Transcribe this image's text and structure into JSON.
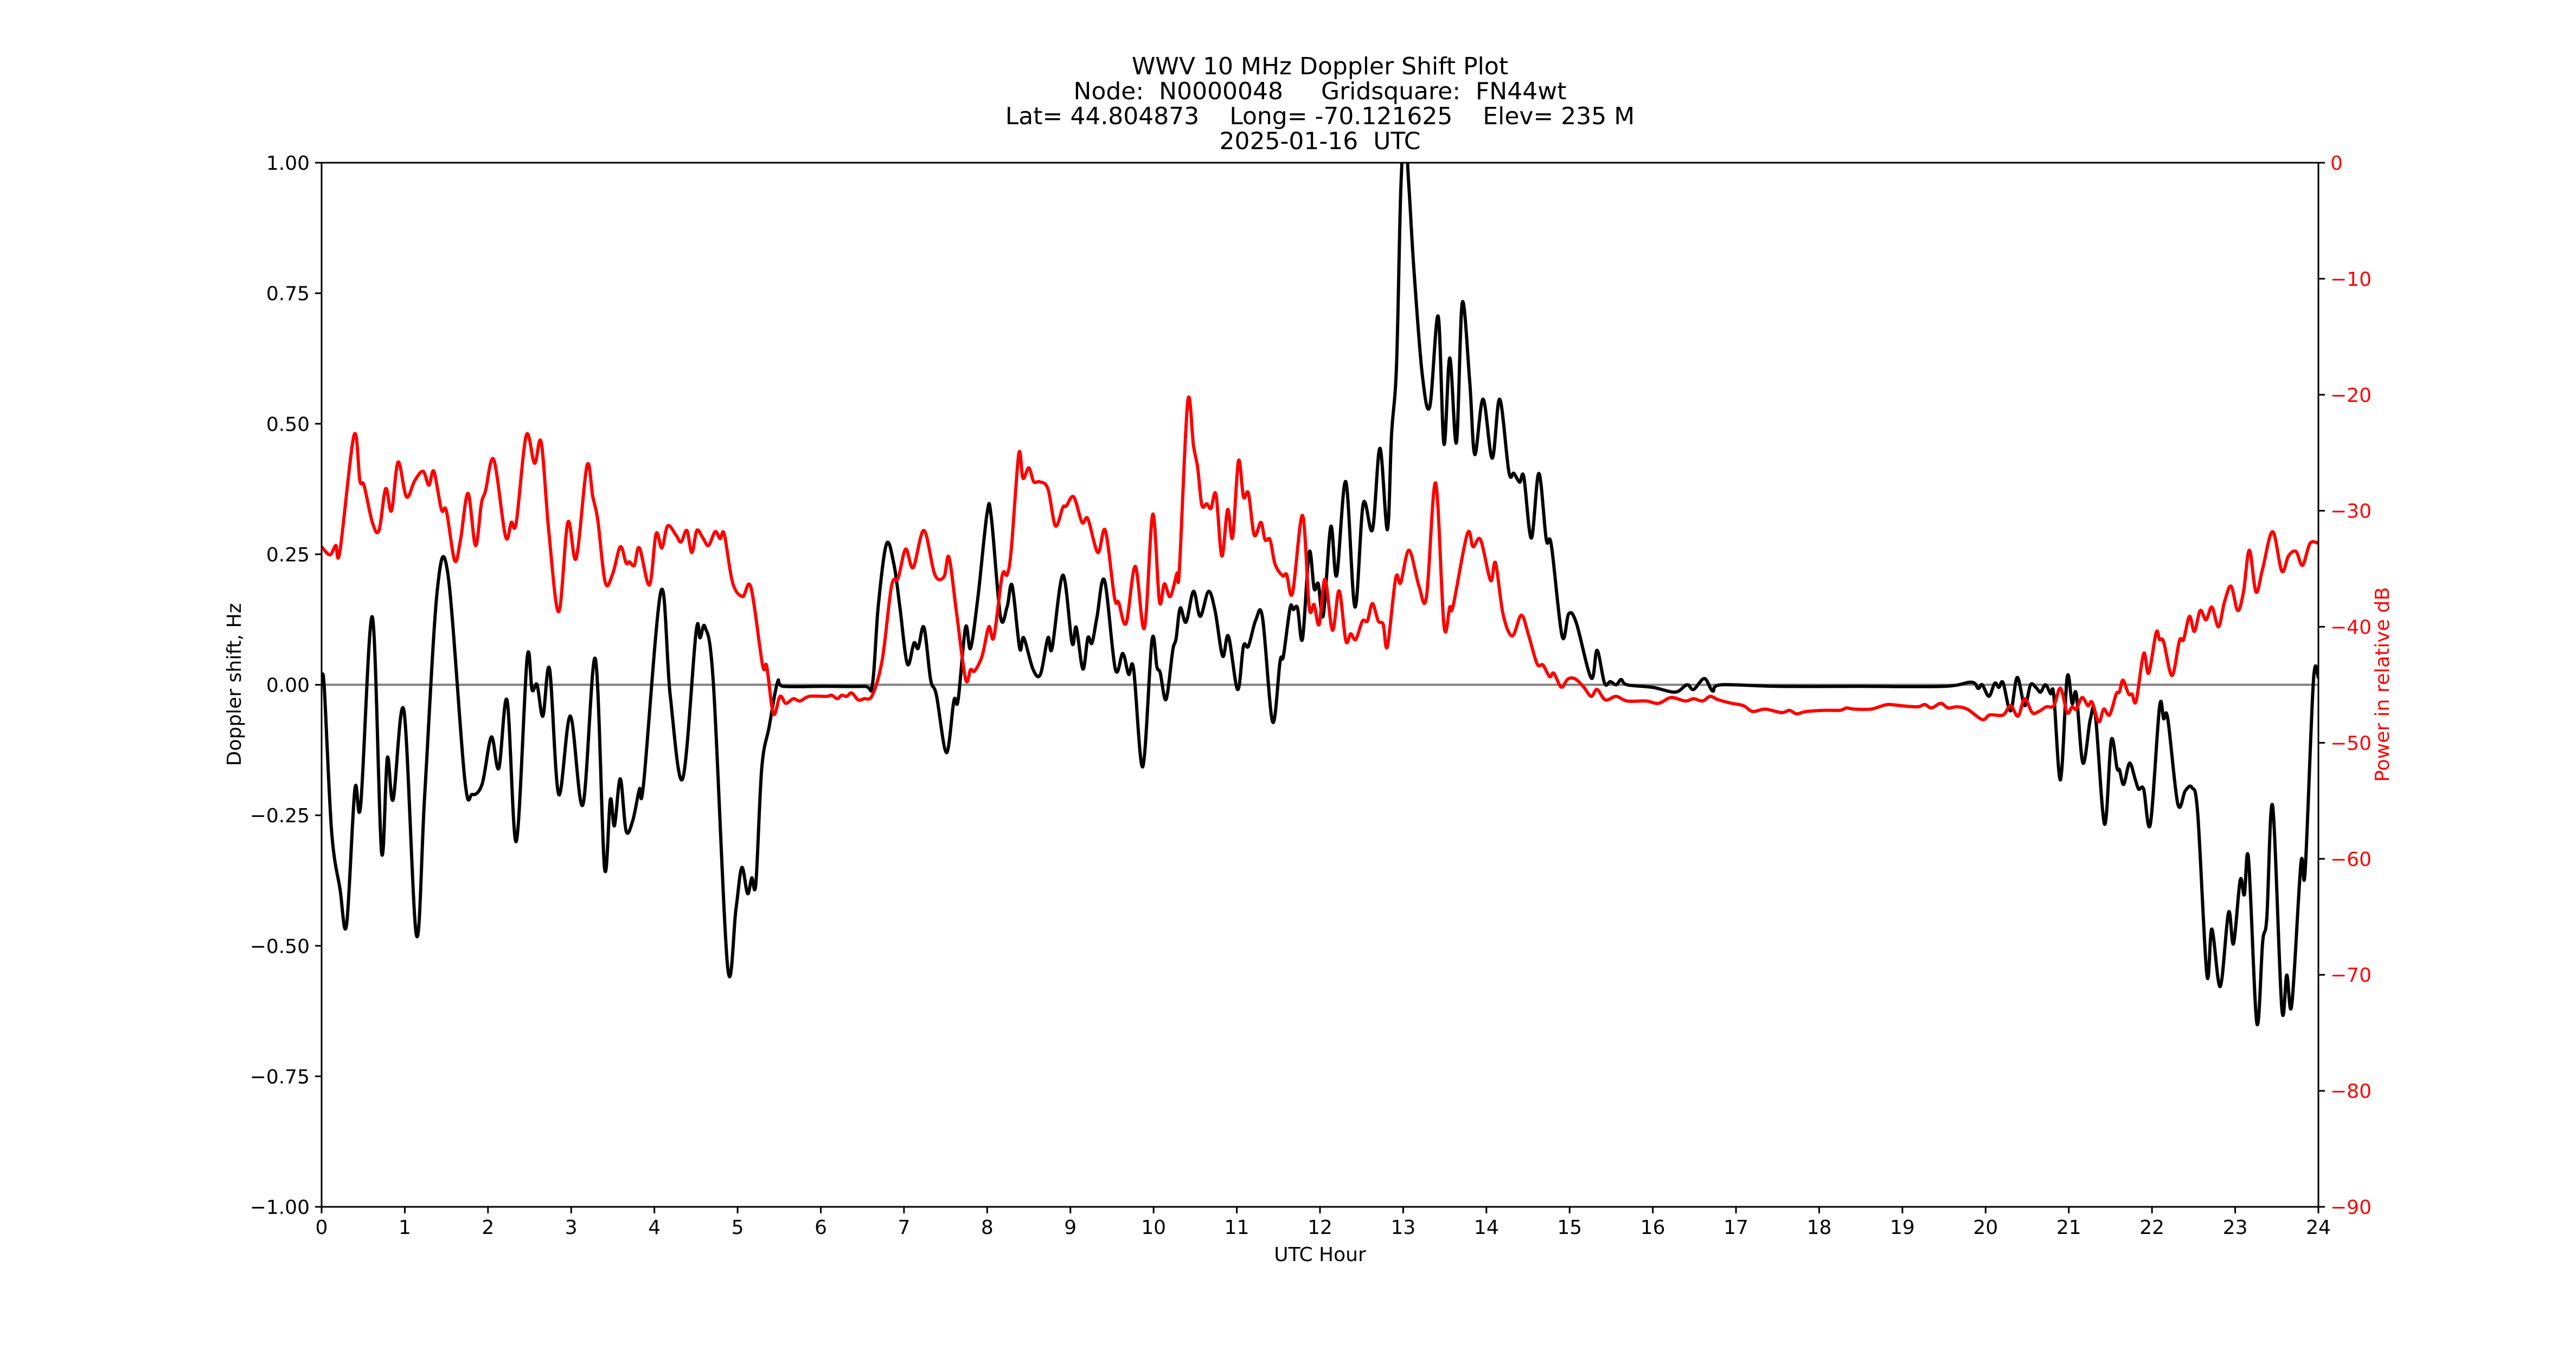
{
  "figure": {
    "title_lines": [
      "WWV 10 MHz Doppler Shift Plot",
      "Node:  N0000048     Gridsquare:  FN44wt",
      "Lat= 44.804873    Long= -70.121625    Elev= 235 M",
      "2025-01-16  UTC"
    ],
    "colors": {
      "doppler": "#000000",
      "power": "#ff0000",
      "zero_line": "#808080",
      "axes": "#000000"
    }
  },
  "chart_data": {
    "type": "line",
    "title": "WWV 10 MHz Doppler Shift Plot\nNode:  N0000048     Gridsquare:  FN44wt\nLat= 44.804873    Long= -70.121625    Elev= 235 M\n2025-01-16  UTC",
    "xlabel": "UTC Hour",
    "ylabel": "Doppler shift, Hz",
    "ylabel_right": "Power in relative dB",
    "xlim": [
      0,
      24
    ],
    "ylim": [
      -1.0,
      1.0
    ],
    "ylim_right": [
      -90,
      0
    ],
    "grid": false,
    "legend": null,
    "x_ticks": [
      "0",
      "1",
      "2",
      "3",
      "4",
      "5",
      "6",
      "7",
      "8",
      "9",
      "10",
      "11",
      "12",
      "13",
      "14",
      "15",
      "16",
      "17",
      "18",
      "19",
      "20",
      "21",
      "22",
      "23",
      "24"
    ],
    "y_ticks": [
      "1.00",
      "0.75",
      "0.50",
      "0.25",
      "0.00",
      "−0.25",
      "−0.50",
      "−0.75",
      "−1.00"
    ],
    "y_tick_values": [
      1.0,
      0.75,
      0.5,
      0.25,
      0.0,
      -0.25,
      -0.5,
      -0.75,
      -1.0
    ],
    "y_right_ticks": [
      "0",
      "−10",
      "−20",
      "−30",
      "−40",
      "−50",
      "−60",
      "−70",
      "−80",
      "−90"
    ],
    "y_right_tick_values": [
      0,
      -10,
      -20,
      -30,
      -40,
      -50,
      -60,
      -70,
      -80,
      -90
    ],
    "reference_line": {
      "y": 0.0,
      "color": "#808080"
    },
    "series": [
      {
        "name": "Doppler shift (Hz)",
        "axis": "left",
        "color": "#000000",
        "x": [
          0.0,
          0.03,
          0.12,
          0.22,
          0.3,
          0.4,
          0.47,
          0.61,
          0.72,
          0.79,
          0.86,
          0.99,
          1.14,
          1.24,
          1.39,
          1.52,
          1.72,
          1.81,
          1.93,
          2.04,
          2.13,
          2.23,
          2.34,
          2.47,
          2.53,
          2.59,
          2.66,
          2.74,
          2.85,
          2.99,
          3.14,
          3.29,
          3.4,
          3.47,
          3.52,
          3.59,
          3.66,
          3.74,
          3.82,
          3.87,
          4.08,
          4.19,
          4.34,
          4.5,
          4.55,
          4.61,
          4.71,
          4.88,
          4.98,
          5.05,
          5.12,
          5.17,
          5.22,
          5.29,
          5.38,
          5.48,
          5.55,
          6.0,
          6.52,
          6.62,
          6.69,
          6.79,
          6.88,
          6.95,
          7.04,
          7.12,
          7.17,
          7.24,
          7.32,
          7.39,
          7.51,
          7.6,
          7.65,
          7.74,
          7.8,
          7.89,
          8.0,
          8.05,
          8.16,
          8.24,
          8.3,
          8.39,
          8.44,
          8.55,
          8.64,
          8.73,
          8.78,
          8.91,
          9.02,
          9.07,
          9.15,
          9.21,
          9.26,
          9.32,
          9.41,
          9.54,
          9.63,
          9.7,
          9.76,
          9.87,
          9.98,
          10.04,
          10.08,
          10.15,
          10.23,
          10.27,
          10.32,
          10.39,
          10.48,
          10.56,
          10.66,
          10.74,
          10.83,
          10.9,
          11.01,
          11.08,
          11.14,
          11.23,
          11.31,
          11.43,
          11.52,
          11.56,
          11.64,
          11.68,
          11.73,
          11.79,
          11.87,
          11.93,
          11.98,
          12.04,
          12.13,
          12.2,
          12.31,
          12.42,
          12.52,
          12.63,
          12.72,
          12.81,
          12.86,
          12.92,
          12.97,
          13.02,
          13.07,
          13.13,
          13.23,
          13.32,
          13.42,
          13.49,
          13.56,
          13.64,
          13.71,
          13.8,
          13.86,
          13.96,
          14.07,
          14.16,
          14.27,
          14.33,
          14.4,
          14.45,
          14.54,
          14.63,
          14.72,
          14.78,
          14.91,
          14.99,
          15.08,
          15.26,
          15.33,
          15.42,
          15.49,
          15.56,
          15.62,
          15.69,
          16.0,
          16.27,
          16.41,
          16.49,
          16.62,
          16.72,
          16.82,
          17.5,
          18.5,
          19.5,
          19.83,
          19.91,
          19.96,
          20.04,
          20.11,
          20.16,
          20.21,
          20.3,
          20.38,
          20.47,
          20.54,
          20.61,
          20.66,
          20.72,
          20.78,
          20.82,
          20.9,
          20.98,
          21.04,
          21.09,
          21.17,
          21.26,
          21.32,
          21.43,
          21.51,
          21.58,
          21.61,
          21.66,
          21.73,
          21.8,
          21.84,
          21.9,
          21.98,
          22.09,
          22.14,
          22.19,
          22.31,
          22.4,
          22.48,
          22.55,
          22.66,
          22.72,
          22.82,
          22.92,
          22.98,
          23.06,
          23.11,
          23.16,
          23.26,
          23.33,
          23.38,
          23.45,
          23.56,
          23.62,
          23.68,
          23.79,
          23.84,
          23.94,
          24.0
        ],
        "values": [
          0.0,
          0.0,
          -0.28,
          -0.39,
          -0.46,
          -0.2,
          -0.23,
          0.13,
          -0.32,
          -0.14,
          -0.22,
          -0.05,
          -0.48,
          -0.21,
          0.18,
          0.21,
          -0.18,
          -0.21,
          -0.19,
          -0.1,
          -0.16,
          -0.03,
          -0.3,
          0.05,
          -0.01,
          0.0,
          -0.06,
          0.03,
          -0.21,
          -0.06,
          -0.23,
          0.05,
          -0.35,
          -0.22,
          -0.27,
          -0.18,
          -0.28,
          -0.26,
          -0.2,
          -0.19,
          0.18,
          -0.02,
          -0.18,
          0.1,
          0.09,
          0.11,
          0.0,
          -0.54,
          -0.43,
          -0.35,
          -0.4,
          -0.37,
          -0.38,
          -0.16,
          -0.08,
          0.005,
          -0.003,
          -0.003,
          -0.003,
          0.0,
          0.15,
          0.27,
          0.23,
          0.15,
          0.04,
          0.08,
          0.07,
          0.11,
          0.01,
          -0.02,
          -0.13,
          -0.03,
          -0.03,
          0.11,
          0.07,
          0.17,
          0.33,
          0.32,
          0.13,
          0.15,
          0.19,
          0.07,
          0.09,
          0.03,
          0.02,
          0.09,
          0.07,
          0.21,
          0.08,
          0.11,
          0.03,
          0.09,
          0.08,
          0.13,
          0.2,
          0.03,
          0.06,
          0.02,
          0.03,
          -0.157,
          0.085,
          0.034,
          0.023,
          -0.028,
          0.066,
          0.088,
          0.147,
          0.12,
          0.179,
          0.131,
          0.179,
          0.141,
          0.055,
          0.093,
          -0.009,
          0.074,
          0.074,
          0.125,
          0.128,
          -0.071,
          0.045,
          0.055,
          0.147,
          0.144,
          0.147,
          0.088,
          0.254,
          0.184,
          0.193,
          0.133,
          0.303,
          0.209,
          0.389,
          0.149,
          0.347,
          0.297,
          0.453,
          0.297,
          0.479,
          0.612,
          0.943,
          1.06,
          0.95,
          0.792,
          0.593,
          0.533,
          0.706,
          0.461,
          0.626,
          0.464,
          0.732,
          0.579,
          0.441,
          0.547,
          0.434,
          0.547,
          0.408,
          0.405,
          0.388,
          0.398,
          0.281,
          0.405,
          0.278,
          0.268,
          0.093,
          0.136,
          0.119,
          0.013,
          0.066,
          0.003,
          0.006,
          0.0,
          0.01,
          0.0,
          -0.005,
          -0.014,
          0.0,
          -0.009,
          0.012,
          -0.012,
          0.0,
          -0.003,
          -0.003,
          -0.003,
          0.005,
          -0.007,
          0.0,
          -0.022,
          0.003,
          -0.005,
          0.004,
          -0.05,
          0.014,
          -0.04,
          0.0,
          -0.006,
          -0.014,
          0.0,
          -0.017,
          -0.02,
          -0.182,
          0.014,
          -0.036,
          -0.018,
          -0.15,
          -0.065,
          -0.059,
          -0.267,
          -0.106,
          -0.16,
          -0.163,
          -0.191,
          -0.15,
          -0.182,
          -0.2,
          -0.2,
          -0.267,
          -0.043,
          -0.065,
          -0.065,
          -0.228,
          -0.203,
          -0.197,
          -0.247,
          -0.556,
          -0.468,
          -0.578,
          -0.436,
          -0.496,
          -0.374,
          -0.402,
          -0.333,
          -0.648,
          -0.493,
          -0.446,
          -0.232,
          -0.619,
          -0.556,
          -0.613,
          -0.342,
          -0.358,
          0.007,
          0.014
        ]
      },
      {
        "name": "Power (relative dB)",
        "axis": "right",
        "color": "#ff0000",
        "x": [
          0.0,
          0.1,
          0.17,
          0.22,
          0.39,
          0.46,
          0.51,
          0.61,
          0.69,
          0.77,
          0.84,
          0.92,
          1.02,
          1.12,
          1.22,
          1.29,
          1.35,
          1.44,
          1.5,
          1.6,
          1.67,
          1.76,
          1.85,
          1.92,
          1.97,
          2.07,
          2.21,
          2.28,
          2.34,
          2.46,
          2.56,
          2.64,
          2.73,
          2.85,
          2.96,
          3.06,
          3.19,
          3.26,
          3.32,
          3.41,
          3.5,
          3.59,
          3.66,
          3.7,
          3.76,
          3.82,
          3.94,
          4.02,
          4.09,
          4.16,
          4.26,
          4.32,
          4.39,
          4.45,
          4.51,
          4.58,
          4.65,
          4.73,
          4.79,
          4.84,
          4.94,
          5.06,
          5.16,
          5.3,
          5.35,
          5.43,
          5.51,
          5.58,
          5.67,
          5.75,
          5.86,
          6.07,
          6.13,
          6.2,
          6.25,
          6.31,
          6.37,
          6.45,
          6.52,
          6.62,
          6.74,
          6.85,
          6.93,
          7.02,
          7.11,
          7.24,
          7.37,
          7.48,
          7.54,
          7.63,
          7.74,
          7.8,
          7.85,
          7.94,
          8.02,
          8.08,
          8.18,
          8.24,
          8.29,
          8.38,
          8.43,
          8.5,
          8.56,
          8.63,
          8.73,
          8.82,
          8.91,
          8.95,
          9.04,
          9.14,
          9.21,
          9.33,
          9.42,
          9.53,
          9.58,
          9.67,
          9.78,
          9.89,
          9.99,
          10.07,
          10.13,
          10.2,
          10.28,
          10.31,
          10.41,
          10.48,
          10.53,
          10.58,
          10.64,
          10.69,
          10.75,
          10.82,
          10.89,
          10.95,
          11.02,
          11.08,
          11.14,
          11.21,
          11.29,
          11.34,
          11.4,
          11.46,
          11.55,
          11.6,
          11.67,
          11.79,
          11.87,
          11.93,
          11.99,
          12.06,
          12.15,
          12.23,
          12.31,
          12.37,
          12.43,
          12.51,
          12.57,
          12.63,
          12.7,
          12.76,
          12.81,
          12.91,
          12.97,
          13.07,
          13.19,
          13.28,
          13.39,
          13.49,
          13.56,
          13.6,
          13.77,
          13.84,
          13.93,
          14.05,
          14.11,
          14.2,
          14.31,
          14.42,
          14.51,
          14.61,
          14.68,
          14.76,
          14.81,
          14.9,
          14.98,
          15.07,
          15.17,
          15.26,
          15.33,
          15.43,
          15.56,
          15.69,
          15.92,
          16.07,
          16.22,
          16.39,
          16.49,
          16.6,
          16.69,
          16.79,
          16.95,
          17.09,
          17.2,
          17.35,
          17.55,
          17.64,
          17.73,
          17.85,
          18.08,
          18.25,
          18.33,
          18.42,
          18.62,
          18.72,
          18.83,
          18.98,
          19.18,
          19.27,
          19.35,
          19.46,
          19.55,
          19.65,
          19.78,
          19.96,
          20.05,
          20.21,
          20.3,
          20.39,
          20.47,
          20.56,
          20.64,
          20.73,
          20.82,
          20.9,
          20.98,
          21.04,
          21.09,
          21.16,
          21.23,
          21.28,
          21.36,
          21.42,
          21.49,
          21.57,
          21.61,
          21.65,
          21.72,
          21.76,
          21.81,
          21.9,
          21.96,
          22.05,
          22.09,
          22.14,
          22.24,
          22.33,
          22.38,
          22.45,
          22.51,
          22.58,
          22.65,
          22.72,
          22.8,
          22.87,
          22.95,
          23.03,
          23.1,
          23.17,
          23.25,
          23.33,
          23.45,
          23.56,
          23.64,
          23.73,
          23.81,
          23.9,
          24.0
        ],
        "values": [
          -33.1,
          -33.8,
          -33.0,
          -33.5,
          -23.5,
          -27.4,
          -27.8,
          -31.0,
          -31.7,
          -28.1,
          -30.0,
          -25.8,
          -28.8,
          -27.4,
          -26.6,
          -27.8,
          -26.6,
          -29.9,
          -30.0,
          -34.3,
          -32.5,
          -28.5,
          -33.0,
          -29.4,
          -28.3,
          -25.6,
          -32.2,
          -31.0,
          -31.0,
          -23.5,
          -25.9,
          -24.1,
          -31.7,
          -38.7,
          -31.0,
          -34.1,
          -26.1,
          -28.8,
          -30.8,
          -36.2,
          -35.4,
          -33.1,
          -34.5,
          -34.4,
          -34.7,
          -33.2,
          -36.4,
          -32.0,
          -33.2,
          -31.3,
          -32.1,
          -32.7,
          -31.7,
          -33.6,
          -31.7,
          -32.3,
          -33.0,
          -31.8,
          -32.4,
          -32.0,
          -36.2,
          -37.4,
          -36.6,
          -43.3,
          -43.4,
          -47.5,
          -46.0,
          -46.6,
          -46.2,
          -46.4,
          -46.0,
          -46.0,
          -45.9,
          -46.2,
          -45.9,
          -46.0,
          -45.7,
          -46.3,
          -46.2,
          -45.9,
          -42.8,
          -36.5,
          -35.8,
          -33.3,
          -34.9,
          -31.7,
          -35.5,
          -35.7,
          -34.0,
          -38.7,
          -44.5,
          -43.7,
          -43.8,
          -42.5,
          -40.0,
          -40.9,
          -35.6,
          -35.5,
          -33.3,
          -25.1,
          -27.2,
          -26.3,
          -27.5,
          -27.5,
          -28.1,
          -31.3,
          -29.7,
          -29.6,
          -28.8,
          -31.0,
          -30.7,
          -33.6,
          -31.7,
          -37.5,
          -37.9,
          -39.7,
          -34.8,
          -40.1,
          -30.3,
          -37.8,
          -36.3,
          -37.4,
          -35.4,
          -35.1,
          -20.6,
          -24.4,
          -26.3,
          -29.5,
          -29.4,
          -29.8,
          -28.6,
          -33.9,
          -29.9,
          -32.3,
          -25.7,
          -28.8,
          -28.5,
          -32.1,
          -31.0,
          -32.5,
          -32.5,
          -34.6,
          -35.6,
          -35.5,
          -37.1,
          -30.4,
          -38.3,
          -38.1,
          -39.8,
          -35.9,
          -40.3,
          -36.9,
          -41.2,
          -40.6,
          -41.1,
          -39.5,
          -39.5,
          -38.0,
          -39.5,
          -39.8,
          -41.7,
          -35.8,
          -36.2,
          -33.4,
          -36.5,
          -37.4,
          -27.6,
          -39.9,
          -38.3,
          -38.2,
          -32.0,
          -33.1,
          -32.5,
          -36.0,
          -34.5,
          -38.9,
          -40.8,
          -39.0,
          -40.8,
          -43.2,
          -43.3,
          -44.3,
          -44.0,
          -45.2,
          -44.5,
          -44.5,
          -45.2,
          -46.0,
          -45.4,
          -46.3,
          -46.0,
          -46.4,
          -46.4,
          -46.6,
          -46.1,
          -46.4,
          -46.2,
          -46.4,
          -46.0,
          -46.3,
          -46.6,
          -46.8,
          -47.3,
          -47.1,
          -47.4,
          -47.2,
          -47.5,
          -47.3,
          -47.2,
          -47.2,
          -47.0,
          -47.1,
          -47.1,
          -46.9,
          -46.7,
          -46.8,
          -46.9,
          -46.7,
          -47.0,
          -46.6,
          -47.0,
          -46.9,
          -47.1,
          -48.0,
          -47.6,
          -47.6,
          -46.8,
          -47.7,
          -46.2,
          -47.4,
          -47.3,
          -46.9,
          -46.8,
          -45.3,
          -47.4,
          -46.9,
          -47.1,
          -46.1,
          -46.8,
          -46.5,
          -48.2,
          -47.1,
          -47.6,
          -45.8,
          -45.6,
          -44.6,
          -45.8,
          -45.8,
          -46.4,
          -42.3,
          -44.0,
          -40.5,
          -41.1,
          -41.3,
          -44.2,
          -41.2,
          -41.1,
          -39.1,
          -40.4,
          -38.6,
          -39.4,
          -38.3,
          -40.0,
          -37.9,
          -36.5,
          -38.6,
          -37.0,
          -33.4,
          -37.0,
          -35.0,
          -31.8,
          -35.2,
          -33.9,
          -33.5,
          -34.7,
          -32.8,
          -32.8
        ]
      }
    ]
  }
}
